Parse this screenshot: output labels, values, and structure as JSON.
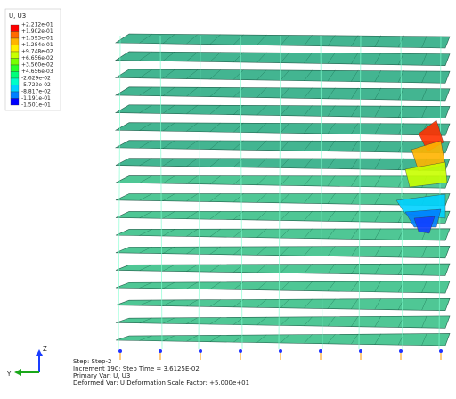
{
  "legend": {
    "title": "U, U3",
    "labels": [
      "+2.212e-01",
      "+1.902e-01",
      "+1.593e-01",
      "+1.284e-01",
      "+9.748e-02",
      "+6.656e-02",
      "+3.560e-02",
      "+4.656e-03",
      "-2.629e-02",
      "-5.723e-02",
      "-8.817e-02",
      "-1.191e-01",
      "-1.501e-01"
    ],
    "colors": [
      "#ff0000",
      "#ff6a00",
      "#ffb400",
      "#ffee00",
      "#c8ff00",
      "#78ff00",
      "#28ff28",
      "#00ff7a",
      "#00ffc8",
      "#00d2ff",
      "#0080ff",
      "#0000ff"
    ]
  },
  "triad": {
    "vertical": "Z",
    "horizontal": "Y"
  },
  "status": {
    "step": "Step: Step-2",
    "increment": "Increment    190: Step Time =    3.6125E-02",
    "primary": "Primary Var: U, U3",
    "deformed": "Deformed Var: U   Deformation Scale Factor: +5.000e+01"
  }
}
